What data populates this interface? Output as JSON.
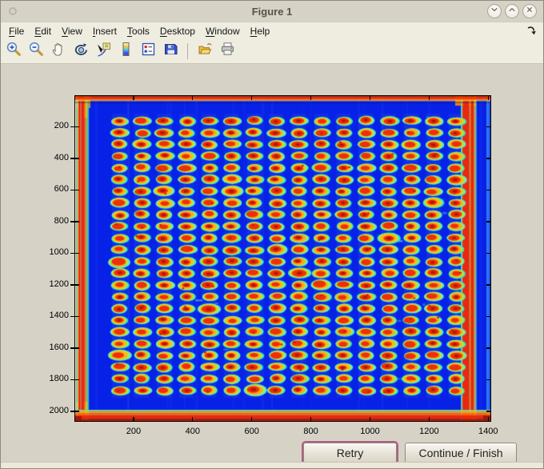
{
  "window": {
    "title": "Figure 1",
    "menu_button_icon": "circle-icon",
    "buttons": [
      {
        "name": "shade",
        "icon": "chevron-down-icon"
      },
      {
        "name": "maximize",
        "icon": "chevron-up-icon"
      },
      {
        "name": "close",
        "icon": "close-icon"
      }
    ]
  },
  "menu_bar": {
    "items": [
      "File",
      "Edit",
      "View",
      "Insert",
      "Tools",
      "Desktop",
      "Window",
      "Help"
    ],
    "dock_icon": "dock-figure-arrow-icon"
  },
  "toolbar": {
    "tools": [
      {
        "name": "zoom-in",
        "icon": "zoom-in-icon"
      },
      {
        "name": "zoom-out",
        "icon": "zoom-out-icon"
      },
      {
        "name": "pan",
        "icon": "hand-icon"
      },
      {
        "name": "rotate-3d",
        "icon": "rotate-icon"
      },
      {
        "name": "data-cursor",
        "icon": "data-cursor-icon"
      },
      {
        "name": "insert-colorbar",
        "icon": "colorbar-icon"
      },
      {
        "name": "insert-legend",
        "icon": "legend-icon"
      },
      {
        "name": "save",
        "icon": "floppy-icon"
      },
      {
        "name": "separator",
        "icon": "separator"
      },
      {
        "name": "open",
        "icon": "folder-open-icon"
      },
      {
        "name": "print",
        "icon": "printer-icon"
      }
    ]
  },
  "plot": {
    "x_tick_labels": [
      "200",
      "400",
      "600",
      "800",
      "1000",
      "1200",
      "1400"
    ],
    "y_tick_labels": [
      "200",
      "400",
      "600",
      "800",
      "1000",
      "1200",
      "1400",
      "1600",
      "1800",
      "2000"
    ],
    "x_axis_range": [
      0,
      1410
    ],
    "y_axis_range": [
      0,
      2066
    ],
    "image": {
      "kind": "microarray-scan-heatmap",
      "colormap": "jet",
      "spot_grid_rows": 24,
      "spot_grid_cols": 16,
      "background_color": "#0721e6",
      "spot_halo_color": "#35e5d0",
      "spot_ring_color": "#ffb414",
      "spot_core_color": "#ef2f07",
      "edge_color": "#e82810"
    }
  },
  "action_buttons": [
    {
      "label": "Retry",
      "focused": true
    },
    {
      "label": "Continue / Finish",
      "focused": false
    }
  ]
}
